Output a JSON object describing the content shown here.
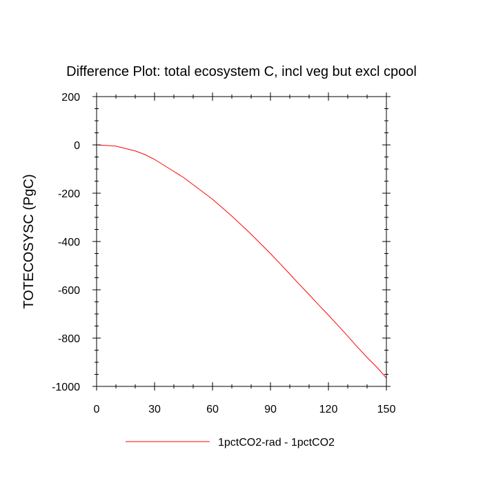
{
  "chart_data": {
    "type": "line",
    "title": "Difference Plot: total ecosystem C, incl veg but excl cpool",
    "xlabel": "",
    "ylabel": "TOTECOSYSC  (PgC)",
    "xlim": [
      0,
      150
    ],
    "ylim": [
      -1000,
      200
    ],
    "x_ticks": [
      0,
      30,
      60,
      90,
      120,
      150
    ],
    "x_tick_labels": [
      "0",
      "30",
      "60",
      "90",
      "120",
      "150"
    ],
    "y_ticks": [
      200,
      0,
      -200,
      -400,
      -600,
      -800,
      -1000
    ],
    "y_tick_labels": [
      "200",
      "0",
      "-200",
      "-400",
      "-600",
      "-800",
      "-1000"
    ],
    "grid": false,
    "legend_position": "bottom-center",
    "series": [
      {
        "name": "1pctCO2-rad - 1pctCO2",
        "color": "#ff0000",
        "x": [
          0,
          5,
          10,
          15,
          20,
          25,
          30,
          35,
          40,
          45,
          50,
          55,
          60,
          65,
          70,
          75,
          80,
          85,
          90,
          95,
          100,
          105,
          110,
          115,
          120,
          125,
          130,
          135,
          140,
          145,
          150
        ],
        "y": [
          0,
          -2,
          -5,
          -15,
          -25,
          -40,
          -60,
          -85,
          -110,
          -135,
          -165,
          -195,
          -225,
          -260,
          -295,
          -332,
          -370,
          -410,
          -450,
          -492,
          -535,
          -578,
          -620,
          -663,
          -705,
          -748,
          -792,
          -837,
          -880,
          -920,
          -965
        ]
      }
    ]
  }
}
